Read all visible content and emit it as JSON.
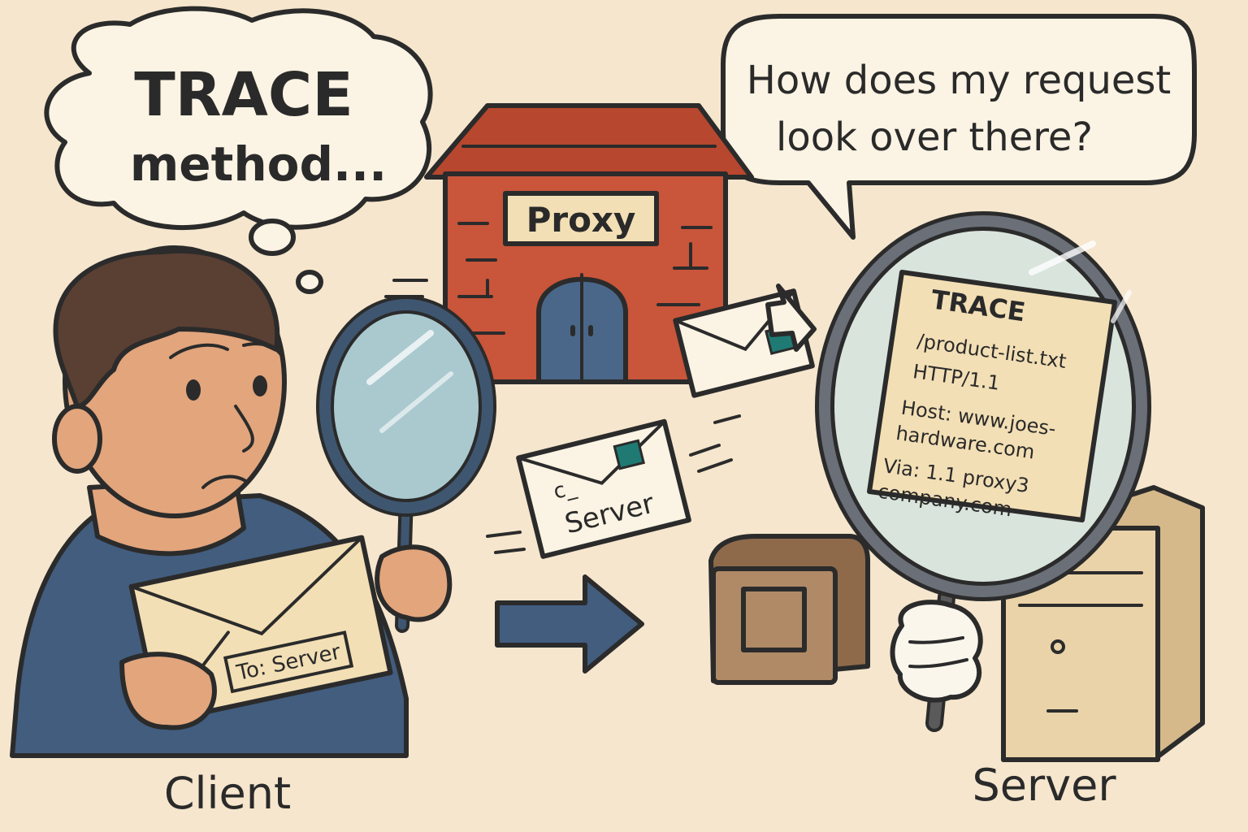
{
  "thought_bubble": {
    "line1": "TRACE",
    "line2": "method..."
  },
  "speech_bubble": {
    "line1": "How does my request",
    "line2": "look over there?"
  },
  "proxy": {
    "sign": "Proxy"
  },
  "client": {
    "label": "Client",
    "envelope_text": "To: Server"
  },
  "server": {
    "label": "Server"
  },
  "flying_envelope": {
    "text": "Server",
    "mark": "c_"
  },
  "request": {
    "line1": "TRACE",
    "line2": "/product-list.txt",
    "line3": "HTTP/1.1",
    "line4": "Host: www.joes-",
    "line5": "hardware.com",
    "line6": "Via: 1.1 proxy3",
    "line7": "company.com"
  },
  "colors": {
    "background": "#f5e6cd",
    "brick": "#c9553a",
    "roof": "#b7472e",
    "door": "#4a6789",
    "shirt": "#425d7e",
    "skin": "#e2a57c",
    "paper": "#f3dfb5",
    "stamp": "#1f7a74",
    "lens": "#a9c9cf",
    "box": "#b08a66",
    "server_case": "#ead3a8"
  }
}
